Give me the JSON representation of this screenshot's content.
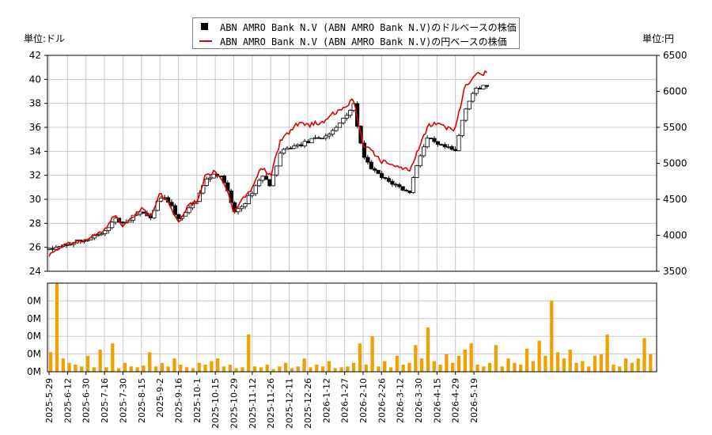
{
  "legend": {
    "usd_label": "ABN AMRO Bank N.V (ABN AMRO Bank N.V)のドルベースの株価",
    "jpy_label": "ABN AMRO Bank N.V (ABN AMRO Bank N.V)の円ベースの株価"
  },
  "units": {
    "left": "単位:ドル",
    "right": "単位:円"
  },
  "colors": {
    "candle": "#000000",
    "jpy_line": "#e00000",
    "volume": "#f0a000",
    "grid": "#c8c8c8"
  },
  "chart_data": {
    "type": "line",
    "price_axis_left": {
      "ylim": [
        24,
        42
      ],
      "ticks": [
        24,
        26,
        28,
        30,
        32,
        34,
        36,
        38,
        40,
        42
      ]
    },
    "price_axis_right": {
      "ylim": [
        3500,
        6500
      ],
      "ticks": [
        3500,
        4000,
        4500,
        5000,
        5500,
        6000,
        6500
      ]
    },
    "volume_axis": {
      "ticks": [
        "0M",
        "0M",
        "0M",
        "0M",
        "0M",
        "0M"
      ]
    },
    "x_tick_labels": [
      "2025-5-29",
      "2025-6-12",
      "2025-6-30",
      "2025-7-16",
      "2025-7-30",
      "2025-8-15",
      "2025-9-2",
      "2025-9-16",
      "2025-10-1",
      "2025-10-15",
      "2025-10-29",
      "2025-11-12",
      "2025-11-26",
      "2025-12-11",
      "2025-12-26",
      "2026-1-12",
      "2026-1-27",
      "2026-2-10",
      "2026-2-26",
      "2026-3-12",
      "2026-3-30",
      "2026-4-15",
      "2026-4-29",
      "2026-5-19"
    ],
    "series": [
      {
        "name": "ABN AMRO Bank N.V (ABN AMRO Bank N.V)のドルベースの株価",
        "anchors": [
          [
            0,
            25.8
          ],
          [
            1,
            26.2
          ],
          [
            1.5,
            26.5
          ],
          [
            2,
            26.6
          ],
          [
            3,
            27.2
          ],
          [
            3.5,
            28.4
          ],
          [
            4,
            28.0
          ],
          [
            4.5,
            28.5
          ],
          [
            5,
            29.0
          ],
          [
            5.5,
            28.3
          ],
          [
            6,
            30.2
          ],
          [
            6.5,
            29.8
          ],
          [
            7,
            28.3
          ],
          [
            7.5,
            29.0
          ],
          [
            8,
            30.0
          ],
          [
            8.5,
            31.6
          ],
          [
            9,
            32.2
          ],
          [
            9.5,
            31.5
          ],
          [
            10,
            28.9
          ],
          [
            10.5,
            29.5
          ],
          [
            11,
            30.6
          ],
          [
            11.5,
            32.0
          ],
          [
            12,
            31.2
          ],
          [
            12.5,
            33.8
          ],
          [
            13,
            34.3
          ],
          [
            13.5,
            34.5
          ],
          [
            14,
            34.8
          ],
          [
            15,
            35.3
          ],
          [
            15.5,
            35.8
          ],
          [
            16,
            37.0
          ],
          [
            16.5,
            37.8
          ],
          [
            17,
            33.5
          ],
          [
            17.5,
            32.5
          ],
          [
            18,
            31.8
          ],
          [
            19,
            31.0
          ],
          [
            19.5,
            30.5
          ],
          [
            20,
            33.4
          ],
          [
            20.5,
            35.1
          ],
          [
            21,
            34.5
          ],
          [
            21.5,
            34.3
          ],
          [
            22,
            34.0
          ],
          [
            22.5,
            37.5
          ],
          [
            23,
            39.0
          ],
          [
            23.7,
            39.5
          ]
        ]
      },
      {
        "name": "ABN AMRO Bank N.V (ABN AMRO Bank N.V)の円ベースの株価",
        "anchors": [
          [
            0,
            3730
          ],
          [
            1,
            3880
          ],
          [
            2,
            3940
          ],
          [
            3,
            4070
          ],
          [
            3.5,
            4280
          ],
          [
            4,
            4140
          ],
          [
            4.5,
            4230
          ],
          [
            5,
            4380
          ],
          [
            5.5,
            4250
          ],
          [
            6,
            4590
          ],
          [
            6.5,
            4430
          ],
          [
            7,
            4180
          ],
          [
            7.5,
            4400
          ],
          [
            8,
            4480
          ],
          [
            8.5,
            4850
          ],
          [
            9,
            4880
          ],
          [
            9.5,
            4730
          ],
          [
            10,
            4310
          ],
          [
            10.5,
            4500
          ],
          [
            11,
            4650
          ],
          [
            11.5,
            4950
          ],
          [
            12,
            4820
          ],
          [
            12.5,
            5300
          ],
          [
            13,
            5440
          ],
          [
            13.5,
            5560
          ],
          [
            14,
            5520
          ],
          [
            15,
            5600
          ],
          [
            15.5,
            5710
          ],
          [
            16,
            5800
          ],
          [
            16.5,
            5890
          ],
          [
            17,
            5250
          ],
          [
            17.5,
            5160
          ],
          [
            18,
            5030
          ],
          [
            19,
            4950
          ],
          [
            19.5,
            4900
          ],
          [
            20,
            5200
          ],
          [
            20.5,
            5510
          ],
          [
            21,
            5560
          ],
          [
            21.5,
            5500
          ],
          [
            22,
            5480
          ],
          [
            22.5,
            6050
          ],
          [
            23,
            6200
          ],
          [
            23.7,
            6280
          ]
        ]
      }
    ],
    "volume_relative": [
      0.22,
      1.0,
      0.15,
      0.1,
      0.08,
      0.06,
      0.18,
      0.05,
      0.25,
      0.05,
      0.32,
      0.04,
      0.1,
      0.06,
      0.05,
      0.07,
      0.22,
      0.06,
      0.1,
      0.06,
      0.15,
      0.08,
      0.05,
      0.04,
      0.1,
      0.08,
      0.12,
      0.15,
      0.06,
      0.08,
      0.04,
      0.05,
      0.42,
      0.06,
      0.05,
      0.08,
      0.03,
      0.06,
      0.1,
      0.04,
      0.06,
      0.15,
      0.05,
      0.08,
      0.06,
      0.12,
      0.04,
      0.05,
      0.06,
      0.1,
      0.32,
      0.08,
      0.4,
      0.06,
      0.12,
      0.05,
      0.18,
      0.08,
      0.1,
      0.3,
      0.15,
      0.5,
      0.12,
      0.08,
      0.2,
      0.1,
      0.18,
      0.25,
      0.32,
      0.08,
      0.06,
      0.1,
      0.3,
      0.06,
      0.15,
      0.1,
      0.08,
      0.26,
      0.12,
      0.35,
      0.18,
      0.8,
      0.22,
      0.15,
      0.25,
      0.1,
      0.12,
      0.06,
      0.18,
      0.2,
      0.42,
      0.08,
      0.06,
      0.15,
      0.1,
      0.15,
      0.38,
      0.2
    ]
  }
}
